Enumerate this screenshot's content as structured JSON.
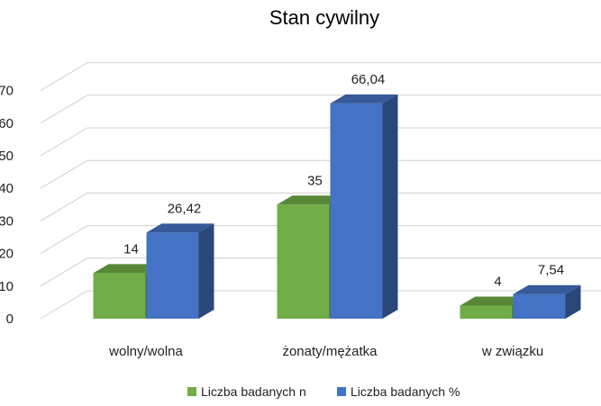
{
  "chart_data": {
    "type": "bar",
    "title": "Stan cywilny",
    "categories": [
      "wolny/wolna",
      "żonaty/mężatka",
      "w związku"
    ],
    "series": [
      {
        "name": "Liczba badanych n",
        "values": [
          14,
          35,
          4
        ],
        "labels": [
          "14",
          "35",
          "4"
        ],
        "color": "#70ad47"
      },
      {
        "name": "Liczba badanych %",
        "values": [
          26.42,
          66.04,
          7.54
        ],
        "labels": [
          "26,42",
          "66,04",
          "7,54"
        ],
        "color": "#4472c4"
      }
    ],
    "ylim": [
      0,
      70
    ],
    "yticks": [
      "0",
      "10",
      "20",
      "30",
      "40",
      "50",
      "60",
      "70"
    ],
    "grid": true,
    "legend": "bottom",
    "style": "3d-clustered-column"
  }
}
